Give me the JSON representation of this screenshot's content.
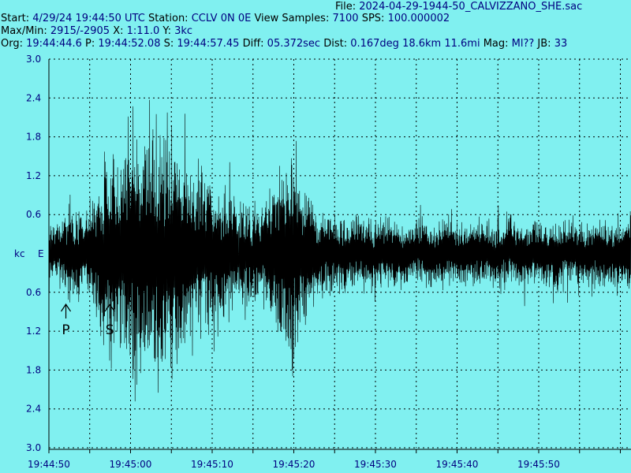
{
  "header": {
    "file_label": "File: ",
    "file_value": "2024-04-29-1944-50_CALVIZZANO_SHE.sac",
    "start_label": "Start: ",
    "start_value": "4/29/24 19:44:50 UTC",
    "station_label": " Station: ",
    "station_value": "CCLV 0N 0E",
    "view_label": " View Samples: ",
    "view_value": "7100",
    "sps_label": "  SPS: ",
    "sps_value": "100.000002",
    "maxmin_label": "Max/Min: ",
    "maxmin_value": "2915/-2905",
    "x_label": " X: ",
    "x_value": "1:11.0",
    "y_label": " Y: ",
    "y_value": "3kc",
    "org_label": "Org: ",
    "org_value": "19:44:44.6",
    "p_label": " P: ",
    "p_value": "19:44:52.08",
    "s_label": " S: ",
    "s_value": "19:44:57.45",
    "diff_label": " Diff: ",
    "diff_value": "05.372sec",
    "dist_label": " Dist: ",
    "dist_value": "0.167deg 18.6km 11.6mi",
    "mag_label": "  Mag: ",
    "mag_value": "Ml??",
    "jb_label": " JB: ",
    "jb_value": "33"
  },
  "chart_data": {
    "type": "line",
    "x_unit": "time (UTC)",
    "y_unit_label": "kc",
    "component_label": "E",
    "ylim": [
      -3.0,
      3.0
    ],
    "y_ticks_top": [
      "3.0",
      "2.4",
      "1.8",
      "1.2",
      "0.6"
    ],
    "y_ticks_bottom": [
      "0.6",
      "1.2",
      "1.8",
      "2.4",
      "3.0"
    ],
    "x_ticks": [
      "19:44:50",
      "19:45:00",
      "19:45:10",
      "19:45:20",
      "19:45:30",
      "19:45:40",
      "19:45:50"
    ],
    "x_range": [
      "19:44:50",
      "19:46:01"
    ],
    "grid": true,
    "phase_markers": [
      {
        "label": "P",
        "time": "19:44:52.08"
      },
      {
        "label": "S",
        "time": "19:44:57.45"
      }
    ],
    "envelope": {
      "times_s": [
        0,
        1.5,
        2,
        5,
        6,
        8,
        10,
        14,
        16,
        18,
        22,
        26,
        30,
        31,
        33,
        38,
        44,
        55,
        71
      ],
      "amplitude_kc": [
        0.6,
        0.6,
        0.9,
        0.9,
        1.6,
        2.2,
        2.6,
        2.7,
        2.2,
        1.7,
        1.3,
        0.9,
        2.2,
        1.4,
        0.9,
        0.75,
        0.7,
        0.7,
        0.7
      ]
    },
    "colors": {
      "background": "#80f0f0",
      "trace": "#000000",
      "grid": "#000000",
      "header_values": "#000080",
      "tick_labels": "#000080"
    }
  }
}
